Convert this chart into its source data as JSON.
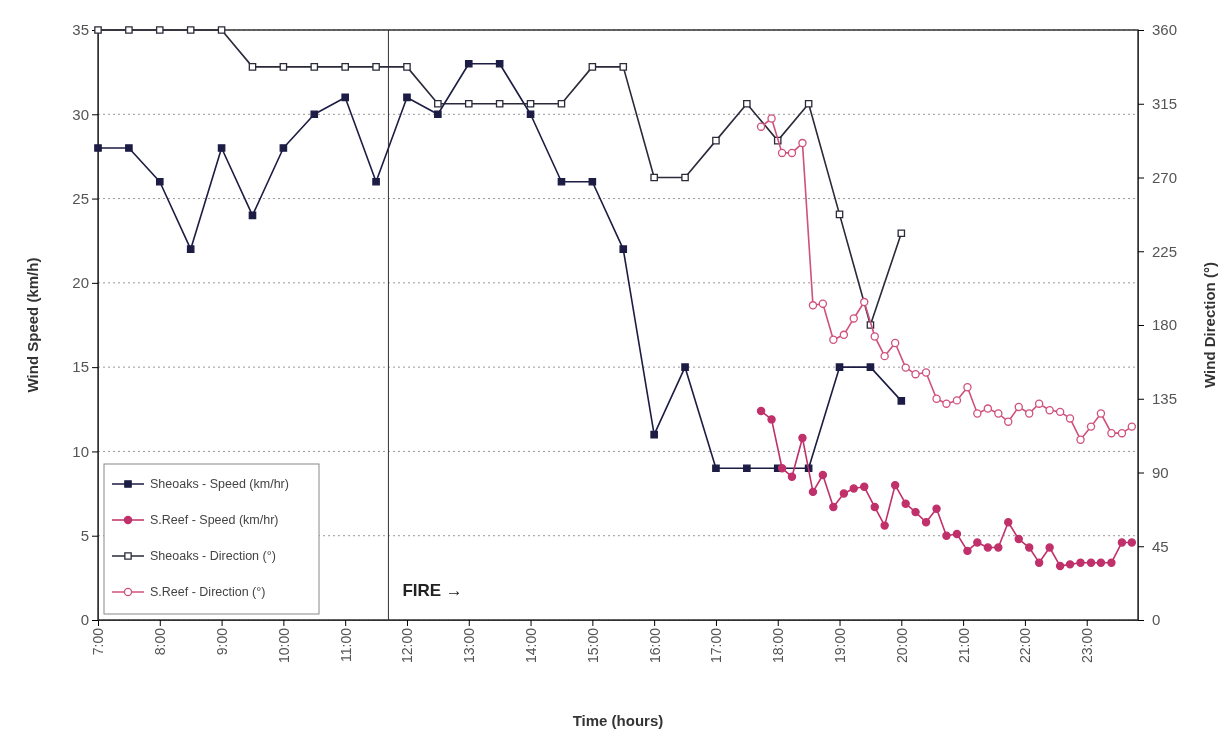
{
  "chart_data": {
    "type": "line",
    "xlabel": "Time (hours)",
    "ylabel": "Wind Speed (km/h)",
    "y2label": "Wind Direction (°)",
    "xlim": [
      7,
      23.83
    ],
    "xticks": [
      {
        "value": 7,
        "label": "7:00"
      },
      {
        "value": 8,
        "label": "8:00"
      },
      {
        "value": 9,
        "label": "9:00"
      },
      {
        "value": 10,
        "label": "10:00"
      },
      {
        "value": 11,
        "label": "11:00"
      },
      {
        "value": 12,
        "label": "12:00"
      },
      {
        "value": 13,
        "label": "13:00"
      },
      {
        "value": 14,
        "label": "14:00"
      },
      {
        "value": 15,
        "label": "15:00"
      },
      {
        "value": 16,
        "label": "16:00"
      },
      {
        "value": 17,
        "label": "17:00"
      },
      {
        "value": 18,
        "label": "18:00"
      },
      {
        "value": 19,
        "label": "19:00"
      },
      {
        "value": 20,
        "label": "20:00"
      },
      {
        "value": 21,
        "label": "21:00"
      },
      {
        "value": 22,
        "label": "22:00"
      },
      {
        "value": 23,
        "label": "23:00"
      }
    ],
    "ylim": [
      0,
      35
    ],
    "yticks": [
      0,
      5,
      10,
      15,
      20,
      25,
      30,
      35
    ],
    "y2lim": [
      0,
      360
    ],
    "y2ticks": [
      0,
      45,
      90,
      135,
      180,
      225,
      270,
      315,
      360
    ],
    "grid": "y",
    "legend": "bottom left",
    "ref_lines": [
      {
        "axis": "x",
        "value": 11.7,
        "label": "FIRE →",
        "color": "#333333"
      }
    ],
    "series": [
      {
        "name": "Sheoaks - Speed (km/hr)",
        "color": "#1c1c44",
        "marker": "square",
        "x": [
          7,
          7.5,
          8,
          8.5,
          9,
          9.5,
          10,
          10.5,
          11,
          11.5,
          12,
          12.5,
          13,
          13.5,
          14,
          14.5,
          15,
          15.5,
          16,
          16.5,
          17,
          17.5,
          18,
          18.5,
          19,
          19.5,
          20
        ],
        "values": [
          28,
          28,
          26,
          22,
          28,
          24,
          28,
          30,
          31,
          26,
          31,
          30,
          33,
          33,
          30,
          26,
          26,
          22,
          11,
          15,
          9,
          9,
          9,
          9,
          15,
          15,
          13
        ]
      },
      {
        "name": "S.Reef - Speed (km/hr)",
        "color": "#c0306a",
        "marker": "circle",
        "x": [
          17.73,
          17.9,
          18.07,
          18.23,
          18.4,
          18.57,
          18.73,
          18.9,
          19.07,
          19.23,
          19.4,
          19.57,
          19.73,
          19.9,
          20.07,
          20.23,
          20.4,
          20.57,
          20.73,
          20.9,
          21.07,
          21.23,
          21.4,
          21.57,
          21.73,
          21.9,
          22.07,
          22.23,
          22.4,
          22.57,
          22.73,
          22.9,
          23.07,
          23.23,
          23.4,
          23.57,
          23.73
        ],
        "values": [
          12.4,
          11.9,
          9,
          8.5,
          10.8,
          7.6,
          8.6,
          6.7,
          7.5,
          7.8,
          7.9,
          6.7,
          5.6,
          8,
          6.9,
          6.4,
          5.8,
          6.6,
          5,
          5.1,
          4.1,
          4.6,
          4.3,
          4.3,
          5.8,
          4.8,
          4.3,
          3.4,
          4.3,
          3.2,
          3.3,
          3.4,
          3.4,
          3.4,
          3.4,
          4.6,
          4.6
        ]
      },
      {
        "name": "Sheoaks - Direction (°)",
        "color": "#2a2a3a",
        "marker": "square",
        "axis": "y2",
        "x": [
          7,
          7.5,
          8,
          8.5,
          9,
          9.5,
          10,
          10.5,
          11,
          11.5,
          12,
          12.5,
          13,
          13.5,
          14,
          14.5,
          15,
          15.5,
          16,
          16.5,
          17,
          17.5,
          18,
          18.5,
          19,
          19.5,
          20
        ],
        "values": [
          360,
          360,
          360,
          360,
          360,
          337.5,
          337.5,
          337.5,
          337.5,
          337.5,
          337.5,
          315,
          315,
          315,
          315,
          315,
          337.5,
          337.5,
          270,
          270,
          292.5,
          315,
          292.5,
          315,
          247.5,
          180,
          236
        ]
      },
      {
        "name": "S.Reef - Direction (°)",
        "color": "#d0507e",
        "marker": "circle",
        "axis": "y2",
        "x": [
          17.73,
          17.9,
          18.07,
          18.23,
          18.4,
          18.57,
          18.73,
          18.9,
          19.07,
          19.23,
          19.4,
          19.57,
          19.73,
          19.9,
          20.07,
          20.23,
          20.4,
          20.57,
          20.73,
          20.9,
          21.07,
          21.23,
          21.4,
          21.57,
          21.73,
          21.9,
          22.07,
          22.23,
          22.4,
          22.57,
          22.73,
          22.9,
          23.07,
          23.23,
          23.4,
          23.57,
          23.73
        ],
        "values": [
          301,
          306,
          285,
          285,
          291,
          192,
          193,
          171,
          174,
          184,
          194,
          173,
          161,
          169,
          154,
          150,
          151,
          135,
          132,
          134,
          142,
          126,
          129,
          126,
          121,
          130,
          126,
          132,
          128,
          127,
          123,
          110,
          118,
          126,
          114,
          114,
          118
        ]
      }
    ]
  }
}
